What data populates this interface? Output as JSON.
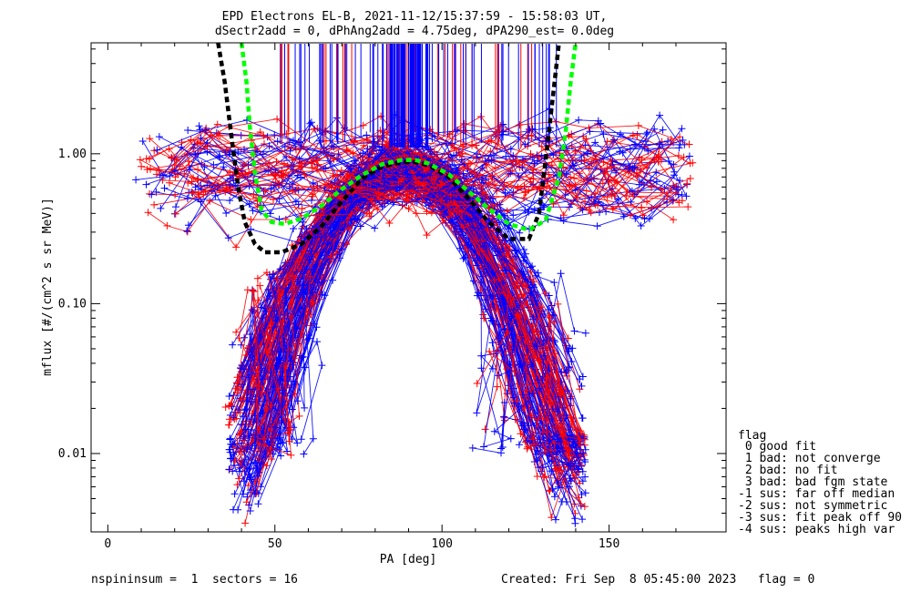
{
  "header": {
    "title_line1": "EPD Electrons EL-B, 2021-11-12/15:37:59 - 15:58:03 UT,",
    "title_line2": "dSectr2add = 0, dPhAng2add = 4.75deg, dPA290_est=    0.0deg"
  },
  "footer": {
    "left": "nspininsum =  1  sectors = 16",
    "right": "Created: Fri Sep  8 05:45:00 2023   flag = 0"
  },
  "legend": {
    "title": "flag",
    "items": [
      " 0 good fit",
      " 1 bad: not converge",
      " 2 bad: no fit",
      " 3 bad: bad fgm state",
      "-1 sus: far off median",
      "-2 sus: not symmetric",
      "-3 sus: fit peak off 90",
      "-4 sus: peaks high var"
    ]
  },
  "colors": {
    "red_series": "#ff0000",
    "blue_series": "#0000ff",
    "black_curve": "#000000",
    "green_curve": "#00ff00"
  },
  "chart_data": {
    "type": "line",
    "title": "EPD Electrons EL-B, 2021-11-12/15:37:59 - 15:58:03 UT,",
    "xlabel": "PA [deg]",
    "ylabel": "mflux [#/(cm^2 s sr MeV)]",
    "x_scale": "linear",
    "y_scale": "log",
    "xlim": [
      -5,
      185
    ],
    "ylim": [
      0.003,
      5.5
    ],
    "x_ticks": [
      0,
      50,
      100,
      150
    ],
    "x_tick_labels": [
      "0",
      "50",
      "100",
      "150"
    ],
    "y_ticks": [
      0.01,
      0.1,
      1.0
    ],
    "y_tick_labels": [
      "0.01",
      "0.10",
      "1.00"
    ],
    "legend_placement": "right-bottom, outside",
    "series": [
      {
        "color": "#000000",
        "style": "dashed",
        "x": [
          33,
          35,
          37,
          39,
          41,
          44,
          47,
          52,
          58,
          64,
          70,
          76,
          82,
          88,
          92,
          96,
          102,
          108,
          114,
          120,
          126,
          129,
          131,
          133,
          135
        ],
        "y": [
          5.5,
          3.0,
          1.3,
          0.6,
          0.35,
          0.25,
          0.22,
          0.22,
          0.25,
          0.33,
          0.48,
          0.68,
          0.82,
          0.88,
          0.88,
          0.84,
          0.7,
          0.5,
          0.35,
          0.27,
          0.27,
          0.4,
          0.9,
          2.2,
          5.5
        ]
      },
      {
        "color": "#00ff00",
        "style": "dashed",
        "x": [
          40,
          41.5,
          42.5,
          44,
          46,
          49,
          53,
          58,
          64,
          70,
          76,
          82,
          88,
          92,
          96,
          102,
          108,
          114,
          120,
          126,
          131,
          135,
          137,
          138.5,
          140
        ],
        "y": [
          5.5,
          3.0,
          1.5,
          0.75,
          0.42,
          0.35,
          0.34,
          0.37,
          0.45,
          0.58,
          0.72,
          0.85,
          0.91,
          0.91,
          0.86,
          0.73,
          0.56,
          0.43,
          0.34,
          0.31,
          0.36,
          0.7,
          1.4,
          3.0,
          5.5
        ]
      }
    ]
  }
}
